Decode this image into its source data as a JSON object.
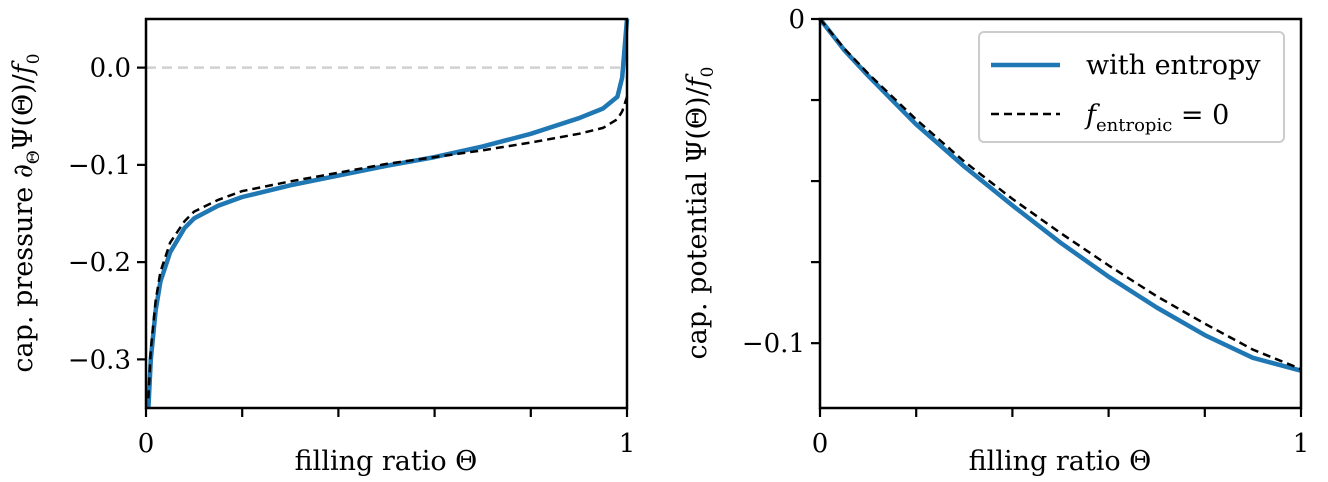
{
  "chart_data": [
    {
      "type": "line",
      "xlabel": "filling ratio Θ",
      "ylabel": "cap. pressure ∂Θ Ψ(Θ)/f0",
      "xlim": [
        0,
        1
      ],
      "ylim": [
        -0.35,
        0.05
      ],
      "x_ticks": [
        0,
        0.2,
        0.4,
        0.6,
        0.8,
        1
      ],
      "x_tick_labels": [
        "0",
        "",
        "",
        "",
        "",
        "1"
      ],
      "y_ticks": [
        0.0,
        -0.1,
        -0.2,
        -0.3
      ],
      "y_tick_labels": [
        "0.0",
        "−0.1",
        "−0.2",
        "−0.3"
      ],
      "reference_line": {
        "y": 0.0,
        "style": "dashed",
        "color": "#d0d0d0"
      },
      "series": [
        {
          "name": "with entropy",
          "color": "#1f77b4",
          "style": "solid",
          "x": [
            0.005,
            0.01,
            0.02,
            0.03,
            0.05,
            0.08,
            0.1,
            0.15,
            0.2,
            0.3,
            0.4,
            0.5,
            0.6,
            0.7,
            0.8,
            0.9,
            0.95,
            0.98,
            0.99,
            1.0
          ],
          "y": [
            -0.35,
            -0.3,
            -0.25,
            -0.22,
            -0.19,
            -0.165,
            -0.155,
            -0.142,
            -0.133,
            -0.121,
            -0.111,
            -0.101,
            -0.092,
            -0.081,
            -0.068,
            -0.052,
            -0.042,
            -0.03,
            -0.01,
            0.05
          ]
        },
        {
          "name": "f_entropic = 0",
          "color": "#000000",
          "style": "dashed",
          "x": [
            0.005,
            0.01,
            0.02,
            0.03,
            0.05,
            0.08,
            0.1,
            0.15,
            0.2,
            0.3,
            0.4,
            0.5,
            0.6,
            0.7,
            0.8,
            0.9,
            0.95,
            0.98,
            0.99,
            1.0
          ],
          "y": [
            -0.34,
            -0.29,
            -0.24,
            -0.21,
            -0.18,
            -0.158,
            -0.148,
            -0.136,
            -0.127,
            -0.117,
            -0.108,
            -0.099,
            -0.092,
            -0.085,
            -0.077,
            -0.068,
            -0.062,
            -0.053,
            -0.045,
            -0.03
          ]
        }
      ]
    },
    {
      "type": "line",
      "xlabel": "filling ratio Θ",
      "ylabel": "cap. potential Ψ(Θ)/f0",
      "xlim": [
        0,
        1
      ],
      "ylim": [
        -0.12,
        0.0
      ],
      "x_ticks": [
        0,
        0.2,
        0.4,
        0.6,
        0.8,
        1
      ],
      "x_tick_labels": [
        "0",
        "",
        "",
        "",
        "",
        "1"
      ],
      "y_ticks": [
        0.0,
        -0.025,
        -0.05,
        -0.075,
        -0.1
      ],
      "y_tick_labels": [
        "0",
        "",
        "",
        "",
        "−0.1"
      ],
      "legend": {
        "position": "top-right",
        "entries": [
          "with entropy",
          "f_entropic = 0"
        ]
      },
      "series": [
        {
          "name": "with entropy",
          "color": "#1f77b4",
          "style": "solid",
          "x": [
            0,
            0.05,
            0.1,
            0.2,
            0.3,
            0.4,
            0.5,
            0.6,
            0.7,
            0.8,
            0.9,
            1.0
          ],
          "y": [
            0,
            -0.0095,
            -0.0175,
            -0.0325,
            -0.0455,
            -0.0575,
            -0.069,
            -0.0795,
            -0.089,
            -0.0975,
            -0.1045,
            -0.1085
          ]
        },
        {
          "name": "f_entropic = 0",
          "color": "#000000",
          "style": "dashed",
          "x": [
            0,
            0.05,
            0.1,
            0.2,
            0.3,
            0.4,
            0.5,
            0.6,
            0.7,
            0.8,
            0.9,
            1.0
          ],
          "y": [
            0,
            -0.009,
            -0.0168,
            -0.031,
            -0.044,
            -0.0555,
            -0.066,
            -0.076,
            -0.0855,
            -0.094,
            -0.102,
            -0.108
          ]
        }
      ]
    }
  ]
}
